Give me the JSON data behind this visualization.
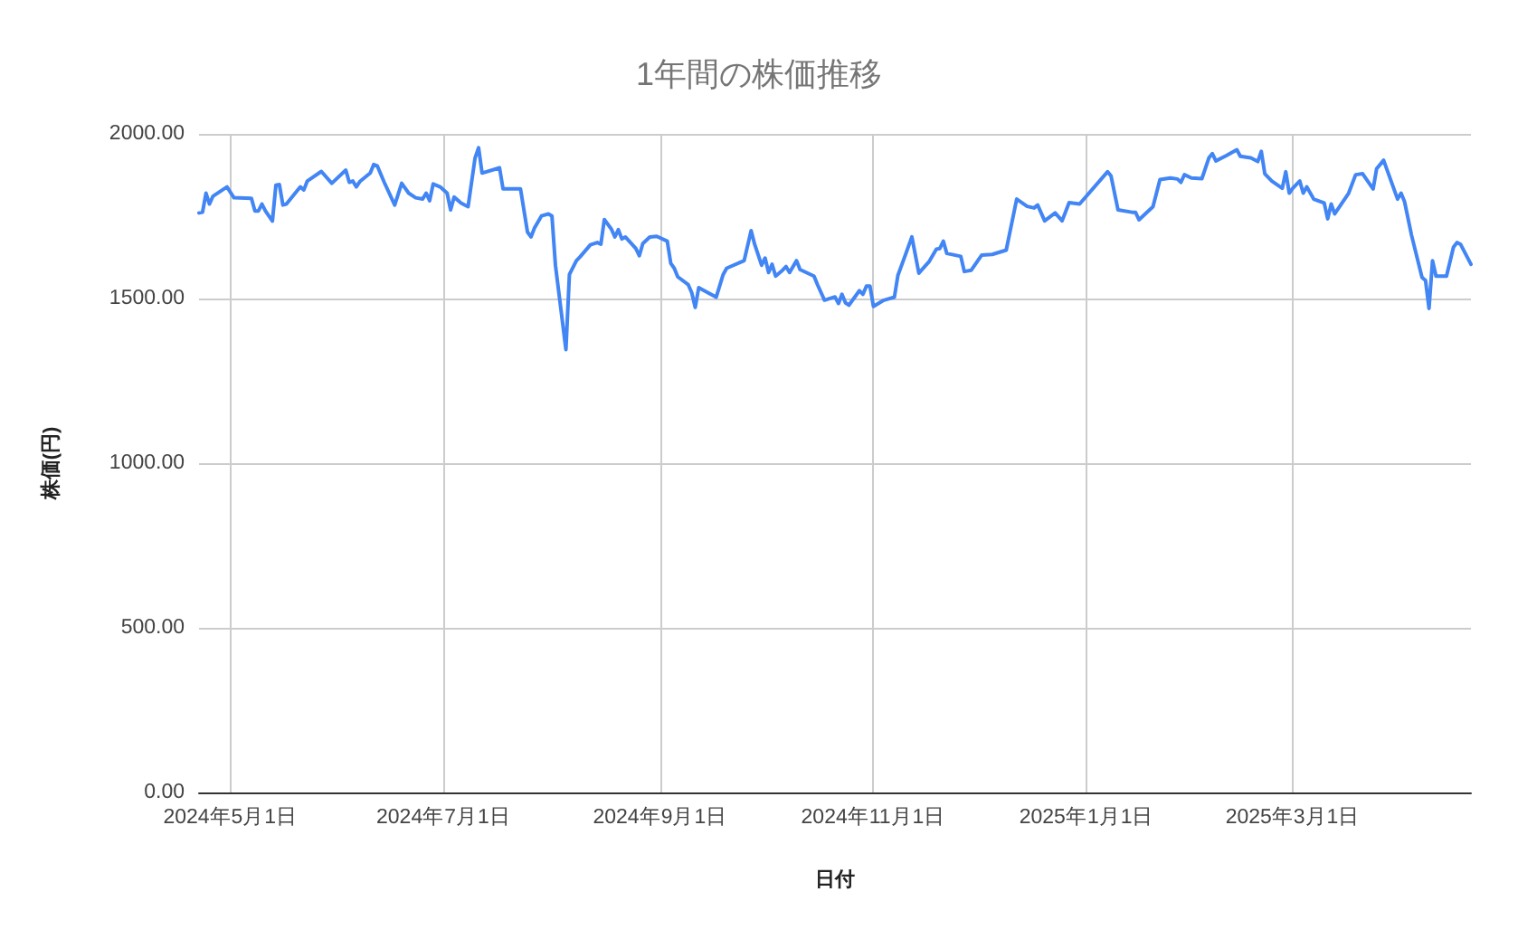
{
  "chart_data": {
    "type": "line",
    "title": "1年間の株価推移",
    "xlabel": "日付",
    "ylabel": "株価(円)",
    "color": "#4285f4",
    "marker": "none",
    "line_style": "solid",
    "grid": true,
    "xlim": [
      "2024-04-22",
      "2025-04-21"
    ],
    "xticks": [
      {
        "value": "2024-05-01",
        "label": "2024年5月1日"
      },
      {
        "value": "2024-07-01",
        "label": "2024年7月1日"
      },
      {
        "value": "2024-09-01",
        "label": "2024年9月1日"
      },
      {
        "value": "2024-11-01",
        "label": "2024年11月1日"
      },
      {
        "value": "2025-01-01",
        "label": "2025年1月1日"
      },
      {
        "value": "2025-03-01",
        "label": "2025年3月1日"
      }
    ],
    "ylim": [
      0,
      2000
    ],
    "yticks": [
      {
        "value": 0,
        "label": "0.00"
      },
      {
        "value": 500,
        "label": "500.00"
      },
      {
        "value": 1000,
        "label": "1000.00"
      },
      {
        "value": 1500,
        "label": "1500.00"
      },
      {
        "value": 2000,
        "label": "2000.00"
      }
    ],
    "x": [
      "2024-04-22",
      "2024-04-23",
      "2024-04-24",
      "2024-04-25",
      "2024-04-26",
      "2024-04-30",
      "2024-05-02",
      "2024-05-07",
      "2024-05-08",
      "2024-05-09",
      "2024-05-10",
      "2024-05-11",
      "2024-05-13",
      "2024-05-14",
      "2024-05-15",
      "2024-05-16",
      "2024-05-17",
      "2024-05-20",
      "2024-05-21",
      "2024-05-22",
      "2024-05-23",
      "2024-05-27",
      "2024-05-30",
      "2024-06-03",
      "2024-06-04",
      "2024-06-05",
      "2024-06-06",
      "2024-06-07",
      "2024-06-10",
      "2024-06-11",
      "2024-06-12",
      "2024-06-14",
      "2024-06-17",
      "2024-06-19",
      "2024-06-21",
      "2024-06-23",
      "2024-06-25",
      "2024-06-26",
      "2024-06-27",
      "2024-06-28",
      "2024-06-30",
      "2024-07-02",
      "2024-07-03",
      "2024-07-04",
      "2024-07-06",
      "2024-07-08",
      "2024-07-10",
      "2024-07-11",
      "2024-07-12",
      "2024-07-17",
      "2024-07-18",
      "2024-07-23",
      "2024-07-25",
      "2024-07-26",
      "2024-07-27",
      "2024-07-29",
      "2024-07-31",
      "2024-08-01",
      "2024-08-02",
      "2024-08-05",
      "2024-08-06",
      "2024-08-08",
      "2024-08-09",
      "2024-08-12",
      "2024-08-14",
      "2024-08-15",
      "2024-08-16",
      "2024-08-18",
      "2024-08-19",
      "2024-08-20",
      "2024-08-21",
      "2024-08-22",
      "2024-08-25",
      "2024-08-26",
      "2024-08-27",
      "2024-08-29",
      "2024-08-31",
      "2024-09-03",
      "2024-09-04",
      "2024-09-05",
      "2024-09-06",
      "2024-09-09",
      "2024-09-10",
      "2024-09-11",
      "2024-09-12",
      "2024-09-17",
      "2024-09-19",
      "2024-09-20",
      "2024-09-25",
      "2024-09-27",
      "2024-09-28",
      "2024-09-30",
      "2024-10-01",
      "2024-10-02",
      "2024-10-03",
      "2024-10-04",
      "2024-10-06",
      "2024-10-07",
      "2024-10-08",
      "2024-10-10",
      "2024-10-11",
      "2024-10-15",
      "2024-10-16",
      "2024-10-18",
      "2024-10-21",
      "2024-10-22",
      "2024-10-23",
      "2024-10-24",
      "2024-10-25",
      "2024-10-28",
      "2024-10-29",
      "2024-10-30",
      "2024-10-31",
      "2024-11-01",
      "2024-11-04",
      "2024-11-07",
      "2024-11-08",
      "2024-11-10",
      "2024-11-12",
      "2024-11-14",
      "2024-11-17",
      "2024-11-19",
      "2024-11-20",
      "2024-11-21",
      "2024-11-22",
      "2024-11-26",
      "2024-11-27",
      "2024-11-29",
      "2024-12-02",
      "2024-12-05",
      "2024-12-09",
      "2024-12-12",
      "2024-12-15",
      "2024-12-17",
      "2024-12-18",
      "2024-12-20",
      "2024-12-23",
      "2024-12-25",
      "2024-12-27",
      "2024-12-30",
      "2025-01-07",
      "2025-01-08",
      "2025-01-10",
      "2025-01-14",
      "2025-01-15",
      "2025-01-16",
      "2025-01-20",
      "2025-01-22",
      "2025-01-25",
      "2025-01-27",
      "2025-01-28",
      "2025-01-29",
      "2025-01-31",
      "2025-02-03",
      "2025-02-05",
      "2025-02-06",
      "2025-02-07",
      "2025-02-10",
      "2025-02-13",
      "2025-02-14",
      "2025-02-17",
      "2025-02-19",
      "2025-02-20",
      "2025-02-21",
      "2025-02-23",
      "2025-02-26",
      "2025-02-27",
      "2025-02-28",
      "2025-03-01",
      "2025-03-03",
      "2025-03-04",
      "2025-03-05",
      "2025-03-07",
      "2025-03-10",
      "2025-03-11",
      "2025-03-12",
      "2025-03-13",
      "2025-03-17",
      "2025-03-19",
      "2025-03-21",
      "2025-03-24",
      "2025-03-25",
      "2025-03-27",
      "2025-03-29",
      "2025-03-31",
      "2025-04-01",
      "2025-04-02",
      "2025-04-04",
      "2025-04-07",
      "2025-04-08",
      "2025-04-09",
      "2025-04-10",
      "2025-04-11",
      "2025-04-14",
      "2025-04-16",
      "2025-04-17",
      "2025-04-18",
      "2025-04-21"
    ],
    "values": [
      1760,
      1762,
      1820,
      1787,
      1811,
      1839,
      1806,
      1804,
      1766,
      1766,
      1787,
      1766,
      1735,
      1844,
      1846,
      1784,
      1787,
      1826,
      1839,
      1830,
      1857,
      1886,
      1850,
      1890,
      1853,
      1857,
      1839,
      1855,
      1881,
      1907,
      1903,
      1853,
      1784,
      1850,
      1820,
      1806,
      1802,
      1820,
      1797,
      1848,
      1839,
      1820,
      1769,
      1808,
      1790,
      1779,
      1927,
      1958,
      1881,
      1897,
      1833,
      1833,
      1702,
      1687,
      1714,
      1751,
      1757,
      1751,
      1601,
      1345,
      1573,
      1615,
      1626,
      1663,
      1670,
      1665,
      1740,
      1711,
      1687,
      1709,
      1681,
      1687,
      1652,
      1630,
      1667,
      1687,
      1689,
      1674,
      1607,
      1592,
      1566,
      1542,
      1518,
      1473,
      1533,
      1504,
      1573,
      1592,
      1615,
      1706,
      1665,
      1601,
      1623,
      1579,
      1604,
      1568,
      1586,
      1597,
      1579,
      1615,
      1588,
      1568,
      1542,
      1495,
      1505,
      1485,
      1513,
      1487,
      1480,
      1524,
      1513,
      1538,
      1538,
      1476,
      1495,
      1504,
      1570,
      1628,
      1687,
      1577,
      1613,
      1650,
      1652,
      1674,
      1637,
      1628,
      1582,
      1586,
      1632,
      1634,
      1647,
      1802,
      1780,
      1775,
      1784,
      1736,
      1760,
      1736,
      1791,
      1787,
      1885,
      1872,
      1769,
      1762,
      1762,
      1739,
      1779,
      1861,
      1866,
      1863,
      1853,
      1876,
      1866,
      1864,
      1927,
      1940,
      1918,
      1934,
      1952,
      1932,
      1927,
      1916,
      1947,
      1879,
      1857,
      1835,
      1885,
      1820,
      1835,
      1857,
      1820,
      1839,
      1802,
      1790,
      1742,
      1787,
      1757,
      1820,
      1876,
      1879,
      1833,
      1894,
      1920,
      1861,
      1802,
      1820,
      1794,
      1692,
      1564,
      1555,
      1470,
      1615,
      1568,
      1568,
      1656,
      1670,
      1665,
      1604
    ]
  }
}
